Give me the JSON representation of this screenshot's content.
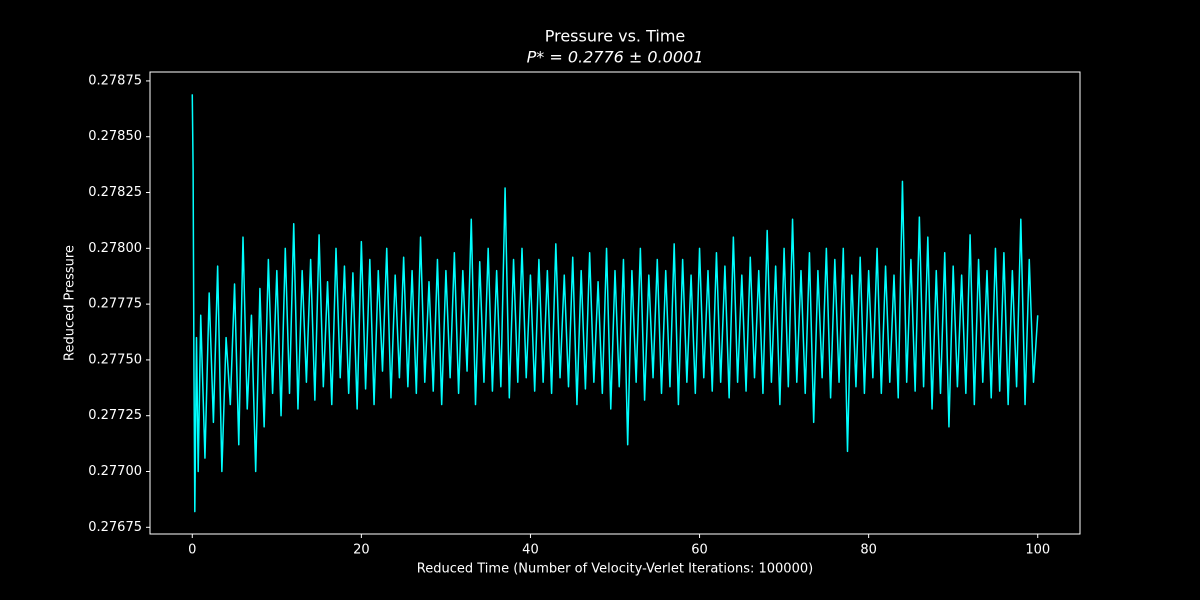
{
  "chart_data": {
    "type": "line",
    "title": "Pressure vs. Time",
    "subtitle": "P* = 0.2776 ± 0.0001",
    "x_label": "Reduced Time (Number of Velocity-Verlet Iterations: 100000)",
    "y_label": "Reduced Pressure",
    "xlim": [
      -5,
      105
    ],
    "xticks": [
      0,
      20,
      40,
      60,
      80,
      100
    ],
    "ylim": [
      0.27672,
      0.27879
    ],
    "yticks": [
      {
        "value": 0.27675,
        "label": "0.27675"
      },
      {
        "value": 0.277,
        "label": "0.27700"
      },
      {
        "value": 0.27725,
        "label": "0.27725"
      },
      {
        "value": 0.2775,
        "label": "0.27750"
      },
      {
        "value": 0.27775,
        "label": "0.27775"
      },
      {
        "value": 0.278,
        "label": "0.27800"
      },
      {
        "value": 0.27825,
        "label": "0.27825"
      },
      {
        "value": 0.2785,
        "label": "0.27850"
      },
      {
        "value": 0.27875,
        "label": "0.27875"
      }
    ],
    "grid": false,
    "series": [
      {
        "color": "#00ffff",
        "x": [
          0,
          0.1,
          0.2,
          0.3,
          0.5,
          0.7,
          1,
          1.5,
          2,
          2.5,
          3,
          3.5,
          4,
          4.5,
          5,
          5.5,
          6,
          6.5,
          7,
          7.5,
          8,
          8.5,
          9,
          9.5,
          10,
          10.5,
          11,
          11.5,
          12,
          12.5,
          13,
          13.5,
          14,
          14.5,
          15,
          15.5,
          16,
          16.5,
          17,
          17.5,
          18,
          18.5,
          19,
          19.5,
          20,
          20.5,
          21,
          21.5,
          22,
          22.5,
          23,
          23.5,
          24,
          24.5,
          25,
          25.5,
          26,
          26.5,
          27,
          27.5,
          28,
          28.5,
          29,
          29.5,
          30,
          30.5,
          31,
          31.5,
          32,
          32.5,
          33,
          33.5,
          34,
          34.5,
          35,
          35.5,
          36,
          36.5,
          37,
          37.5,
          38,
          38.5,
          39,
          39.5,
          40,
          40.5,
          41,
          41.5,
          42,
          42.5,
          43,
          43.5,
          44,
          44.5,
          45,
          45.5,
          46,
          46.5,
          47,
          47.5,
          48,
          48.5,
          49,
          49.5,
          50,
          50.5,
          51,
          51.5,
          52,
          52.5,
          53,
          53.5,
          54,
          54.5,
          55,
          55.5,
          56,
          56.5,
          57,
          57.5,
          58,
          58.5,
          59,
          59.5,
          60,
          60.5,
          61,
          61.5,
          62,
          62.5,
          63,
          63.5,
          64,
          64.5,
          65,
          65.5,
          66,
          66.5,
          67,
          67.5,
          68,
          68.5,
          69,
          69.5,
          70,
          70.5,
          71,
          71.5,
          72,
          72.5,
          73,
          73.5,
          74,
          74.5,
          75,
          75.5,
          76,
          76.5,
          77,
          77.5,
          78,
          78.5,
          79,
          79.5,
          80,
          80.5,
          81,
          81.5,
          82,
          82.5,
          83,
          83.5,
          84,
          84.5,
          85,
          85.5,
          86,
          86.5,
          87,
          87.5,
          88,
          88.5,
          89,
          89.5,
          90,
          90.5,
          91,
          91.5,
          92,
          92.5,
          93,
          93.5,
          94,
          94.5,
          95,
          95.5,
          96,
          96.5,
          97,
          97.5,
          98,
          98.5,
          99,
          99.5,
          100
        ],
        "values": [
          0.27869,
          0.27835,
          0.27745,
          0.27682,
          0.2776,
          0.277,
          0.2777,
          0.27706,
          0.2778,
          0.27722,
          0.27792,
          0.277,
          0.2776,
          0.2773,
          0.27784,
          0.27712,
          0.27805,
          0.27728,
          0.2777,
          0.277,
          0.27782,
          0.2772,
          0.27795,
          0.27735,
          0.2779,
          0.27725,
          0.278,
          0.27735,
          0.27811,
          0.27728,
          0.2779,
          0.2774,
          0.27795,
          0.27732,
          0.27806,
          0.27738,
          0.27785,
          0.2773,
          0.278,
          0.27742,
          0.27792,
          0.27735,
          0.27789,
          0.27728,
          0.27803,
          0.27737,
          0.27795,
          0.2773,
          0.2779,
          0.27745,
          0.278,
          0.27733,
          0.27788,
          0.27742,
          0.27796,
          0.27738,
          0.2779,
          0.27735,
          0.27805,
          0.2774,
          0.27785,
          0.27736,
          0.27795,
          0.2773,
          0.2779,
          0.27742,
          0.27798,
          0.27735,
          0.2779,
          0.27745,
          0.27813,
          0.2773,
          0.27794,
          0.2774,
          0.278,
          0.27736,
          0.2779,
          0.27738,
          0.27827,
          0.27733,
          0.27795,
          0.2774,
          0.278,
          0.27742,
          0.27788,
          0.27736,
          0.27795,
          0.2774,
          0.2779,
          0.27735,
          0.27802,
          0.27742,
          0.27788,
          0.27738,
          0.27796,
          0.2773,
          0.2779,
          0.27737,
          0.27798,
          0.2774,
          0.27785,
          0.27735,
          0.278,
          0.27728,
          0.2779,
          0.27738,
          0.27795,
          0.27712,
          0.2779,
          0.2774,
          0.278,
          0.27732,
          0.27788,
          0.27742,
          0.27795,
          0.27735,
          0.2779,
          0.27738,
          0.27802,
          0.2773,
          0.27795,
          0.2774,
          0.27788,
          0.27735,
          0.278,
          0.27742,
          0.2779,
          0.27736,
          0.27798,
          0.2774,
          0.27792,
          0.27733,
          0.27805,
          0.2774,
          0.27788,
          0.27736,
          0.27796,
          0.27742,
          0.2779,
          0.27735,
          0.27808,
          0.2774,
          0.27792,
          0.2773,
          0.278,
          0.27738,
          0.27813,
          0.2774,
          0.2779,
          0.27735,
          0.27798,
          0.27722,
          0.2779,
          0.27742,
          0.278,
          0.27733,
          0.27795,
          0.2774,
          0.278,
          0.27709,
          0.27788,
          0.27738,
          0.27796,
          0.27735,
          0.2779,
          0.27742,
          0.278,
          0.27735,
          0.27792,
          0.2774,
          0.27788,
          0.27733,
          0.2783,
          0.2774,
          0.27795,
          0.27736,
          0.27814,
          0.27738,
          0.27805,
          0.27728,
          0.2779,
          0.27735,
          0.27798,
          0.2772,
          0.27792,
          0.27738,
          0.27788,
          0.27735,
          0.27806,
          0.2773,
          0.27795,
          0.2774,
          0.2779,
          0.27733,
          0.278,
          0.27736,
          0.27798,
          0.2773,
          0.2779,
          0.27738,
          0.27813,
          0.2773,
          0.27795,
          0.2774,
          0.2777
        ]
      }
    ]
  }
}
